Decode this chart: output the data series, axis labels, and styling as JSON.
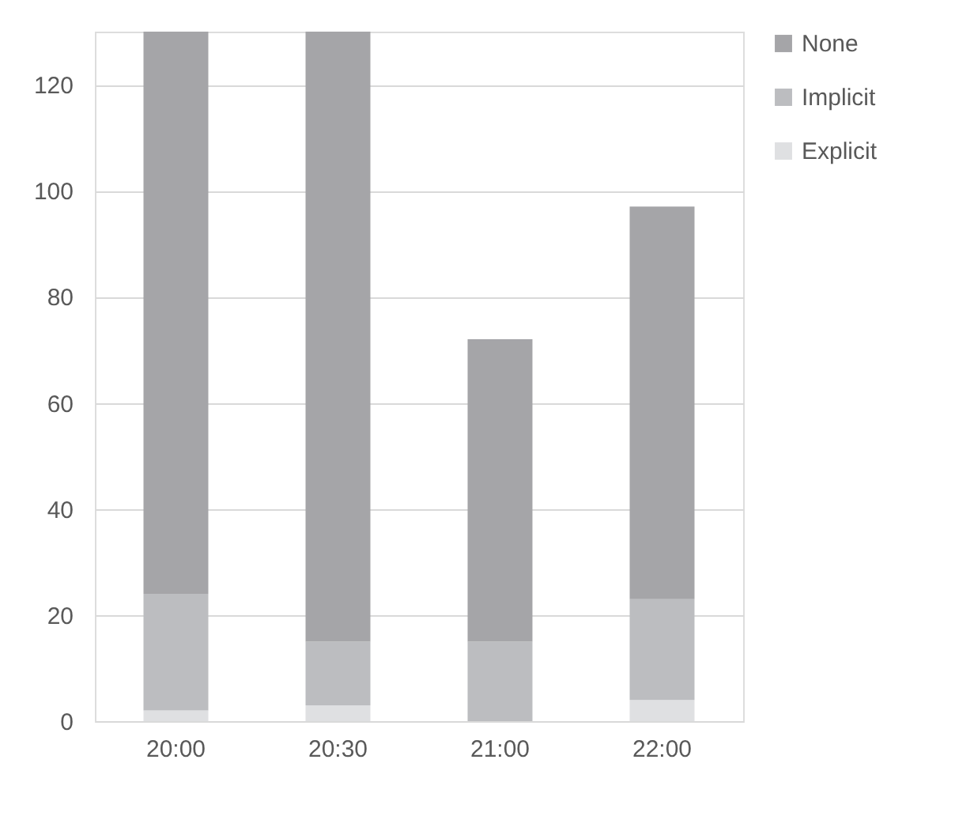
{
  "chart_data": {
    "type": "bar",
    "stacked": true,
    "categories": [
      "20:00",
      "20:30",
      "21:00",
      "22:00"
    ],
    "series": [
      {
        "name": "Explicit",
        "color": "#dfe0e2",
        "values": [
          2,
          3,
          0,
          4
        ]
      },
      {
        "name": "Implicit",
        "color": "#bcbdc0",
        "values": [
          22,
          12,
          15,
          19
        ]
      },
      {
        "name": "None",
        "color": "#a5a5a8",
        "values": [
          106,
          115,
          57,
          74
        ]
      }
    ],
    "ylim": [
      0,
      130
    ],
    "yticks": [
      0,
      20,
      40,
      60,
      80,
      100,
      120
    ],
    "grid": "y",
    "legend": "right"
  }
}
